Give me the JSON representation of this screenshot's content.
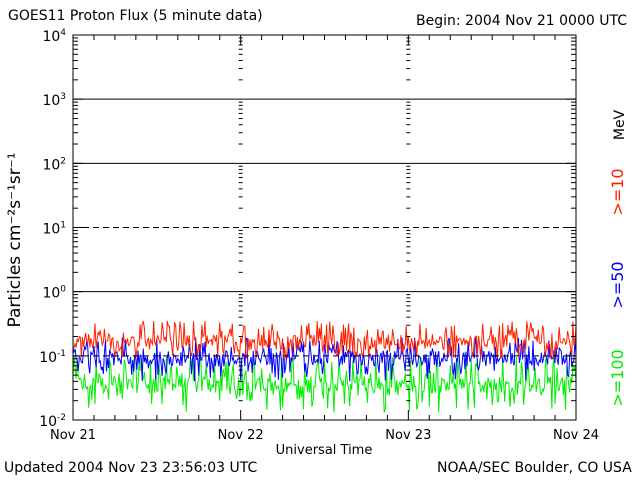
{
  "header": {
    "title": "GOES11 Proton Flux (5 minute data)",
    "begin": "Begin: 2004 Nov 21 0000 UTC"
  },
  "footer": {
    "updated": "Updated 2004 Nov 23 23:56:03 UTC",
    "credit": "NOAA/SEC Boulder, CO USA"
  },
  "chart_data": {
    "type": "line",
    "title": "GOES11 Proton Flux (5 minute data)",
    "xlabel": "Universal Time",
    "ylabel": "Particles cm⁻²s⁻¹sr⁻¹",
    "yscale": "log",
    "ylim": [
      0.01,
      10000
    ],
    "xlim": [
      "2004-11-21",
      "2004-11-24"
    ],
    "x_ticks": [
      "Nov 21",
      "Nov 22",
      "Nov 23",
      "Nov 24"
    ],
    "y_ticks": [
      {
        "base": "10",
        "exp": "4"
      },
      {
        "base": "10",
        "exp": "3"
      },
      {
        "base": "10",
        "exp": "2"
      },
      {
        "base": "10",
        "exp": "1"
      },
      {
        "base": "10",
        "exp": "0"
      },
      {
        "base": "10",
        "exp": "-1"
      },
      {
        "base": "10",
        "exp": "-2"
      }
    ],
    "y_ref_lines": [
      {
        "value": 1000,
        "style": "solid"
      },
      {
        "value": 100,
        "style": "solid"
      },
      {
        "value": 10,
        "style": "dashed"
      },
      {
        "value": 1,
        "style": "solid"
      },
      {
        "value": 0.1,
        "style": "dashed"
      }
    ],
    "unit_label": "MeV",
    "series": [
      {
        "name": ">=10",
        "color": "#ff2200",
        "approx_range": [
          0.09,
          0.35
        ],
        "typical": 0.16
      },
      {
        "name": ">=50",
        "color": "#0000ff",
        "approx_range": [
          0.04,
          0.2
        ],
        "typical": 0.09
      },
      {
        "name": ">=100",
        "color": "#00ee00",
        "approx_range": [
          0.013,
          0.1
        ],
        "typical": 0.035
      }
    ],
    "grid": false
  }
}
